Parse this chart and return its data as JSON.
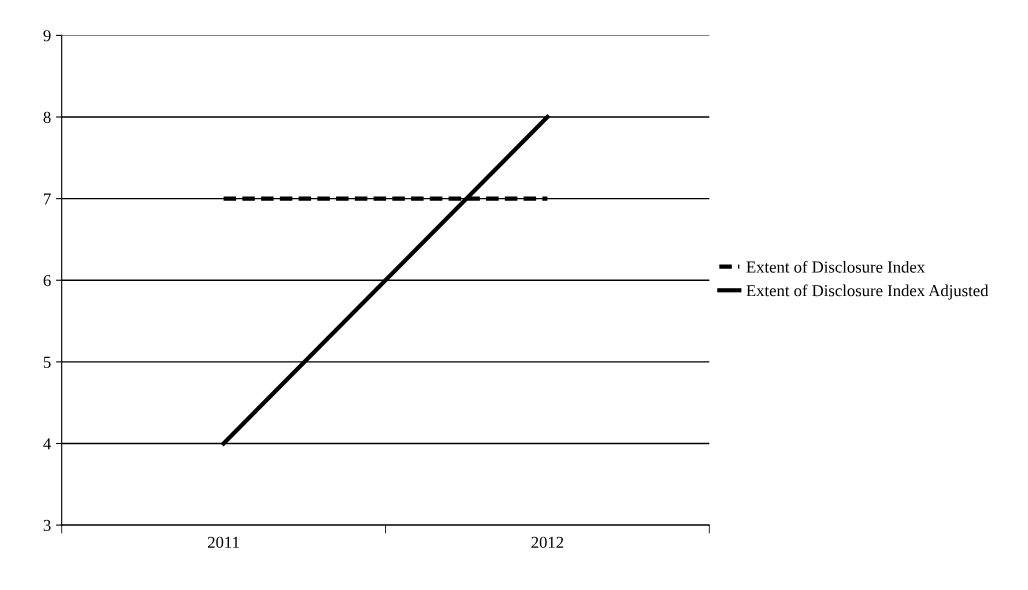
{
  "chart_data": {
    "type": "line",
    "categories": [
      "2011",
      "2012"
    ],
    "series": [
      {
        "name": "Extent of Disclosure Index",
        "color": "#000000",
        "values": [
          7,
          7
        ],
        "line_style": "dashed"
      },
      {
        "name": "Extent of Disclosure Index Adjusted",
        "color": "#000000",
        "values": [
          4,
          8
        ],
        "line_style": "solid"
      }
    ],
    "ylim": [
      3,
      9
    ],
    "yticks": [
      3,
      4,
      5,
      6,
      7,
      8,
      9
    ],
    "grid": "y",
    "legend": "right"
  }
}
